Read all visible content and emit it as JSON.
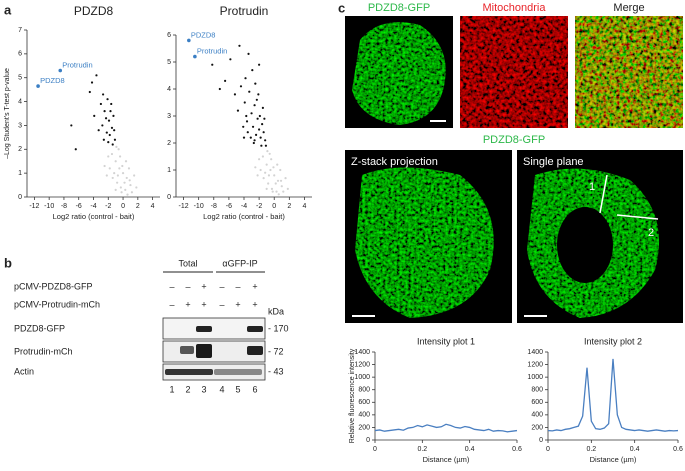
{
  "panel_labels": [
    "a",
    "b",
    "c"
  ],
  "chart_data": [
    {
      "type": "scatter",
      "title": "PDZD8",
      "xlabel": "Log2 ratio (control - bait)",
      "ylabel": "–Log Student's T-test p-value",
      "xlim": [
        -13,
        5
      ],
      "ylim": [
        0,
        7
      ],
      "xticks": [
        -12,
        -10,
        -8,
        -6,
        -4,
        -2,
        0,
        2,
        4
      ],
      "yticks": [
        0,
        1,
        2,
        3,
        4,
        5,
        6,
        7
      ],
      "series": [
        {
          "color": "#d3d3d3",
          "x": [
            -1.5,
            -1.0,
            -0.5,
            0,
            0.5,
            -0.8,
            -0.3,
            0.3,
            1.0,
            -1.2,
            -2.0,
            -2.5,
            0.8,
            1.5,
            -0.6,
            -1.8,
            0.2,
            -0.2,
            0.6,
            1.2,
            -1.0,
            -0.4,
            0.4,
            -1.4,
            -0.9,
            -2.2,
            1.8,
            -0.1,
            0.9,
            -0.7
          ],
          "values": [
            1.8,
            1.5,
            1.2,
            1.0,
            0.8,
            0.6,
            0.4,
            0.3,
            0.5,
            1.0,
            1.7,
            1.3,
            1.2,
            0.9,
            2.0,
            1.2,
            0.6,
            0.2,
            0.1,
            0.2,
            0.3,
            1.7,
            1.5,
            0.8,
            2.1,
            0.9,
            0.4,
            1.3,
            0.7,
            0.9
          ]
        },
        {
          "color": "#111111",
          "x": [
            -4.2,
            -3.6,
            -3.9,
            -4.5,
            -2.1,
            -1.6,
            -2.5,
            -1.9,
            -2.8,
            -1.3,
            -2.2,
            -1.8,
            -1.5,
            -2.6,
            -3.3,
            -1.1,
            -2.0,
            -6.4,
            -7.0,
            -1.7,
            -2.3,
            -1.4,
            -3.0,
            -2.7,
            -1.2
          ],
          "values": [
            4.8,
            5.1,
            3.4,
            4.4,
            4.1,
            3.9,
            3.6,
            3.2,
            3.0,
            3.4,
            2.7,
            2.6,
            2.9,
            2.4,
            2.8,
            2.4,
            2.3,
            2.0,
            3.0,
            3.6,
            3.3,
            2.2,
            3.9,
            4.3,
            2.8
          ]
        },
        {
          "color": "#3b7fc4",
          "x": [
            -11.5,
            -8.5
          ],
          "values": [
            4.65,
            5.3
          ],
          "labels": [
            "PDZD8",
            "Protrudin"
          ]
        }
      ]
    },
    {
      "type": "scatter",
      "title": "Protrudin",
      "xlabel": "Log2 ratio (control - bait)",
      "xlim": [
        -13,
        5
      ],
      "ylim": [
        0,
        6
      ],
      "xticks": [
        -12,
        -10,
        -8,
        -6,
        -4,
        -2,
        0,
        2,
        4
      ],
      "yticks": [
        0,
        1,
        2,
        3,
        4,
        5,
        6
      ],
      "series": [
        {
          "color": "#d3d3d3",
          "x": [
            -1.5,
            -1.0,
            -0.5,
            0,
            0.5,
            -0.8,
            -0.3,
            0.3,
            1.0,
            -1.2,
            -2.0,
            -2.5,
            0.8,
            1.5,
            -0.6,
            -1.8,
            0.2,
            -0.2,
            0.6,
            1.2,
            -1.0,
            -0.4,
            0.4,
            -1.4,
            -0.9,
            -2.2,
            1.8,
            -0.1,
            0.9,
            -0.7
          ],
          "values": [
            1.5,
            1.2,
            1.0,
            0.8,
            0.6,
            0.5,
            0.3,
            0.2,
            0.4,
            0.9,
            1.4,
            1.1,
            1.0,
            0.7,
            1.6,
            1.0,
            0.5,
            0.2,
            0.1,
            0.2,
            0.3,
            1.4,
            1.2,
            0.7,
            1.7,
            0.8,
            0.3,
            1.1,
            0.6,
            0.8
          ]
        },
        {
          "color": "#111111",
          "x": [
            -5.2,
            -4.8,
            -4.4,
            -3.9,
            -3.6,
            -3.3,
            -3.0,
            -2.8,
            -2.6,
            -2.4,
            -2.2,
            -2.0,
            -1.8,
            -1.6,
            -1.4,
            -1.2,
            -3.5,
            -3.1,
            -2.7,
            -2.3,
            -1.9,
            -1.5,
            -4.1,
            -3.8,
            -2.9,
            -2.5,
            -2.1,
            -1.7,
            -1.3,
            -6.5,
            -7.2,
            -5.8,
            -4.6,
            -3.4,
            -8.2,
            -2.0,
            -1.1,
            -3.7,
            -2.6,
            -4.0
          ],
          "values": [
            3.8,
            3.2,
            4.1,
            3.5,
            2.8,
            3.9,
            3.1,
            2.6,
            3.4,
            2.3,
            2.9,
            2.5,
            2.2,
            2.7,
            2.4,
            2.1,
            2.4,
            2.2,
            2.0,
            3.6,
            3.0,
            3.3,
            2.6,
            4.4,
            4.7,
            4.2,
            3.8,
            1.9,
            2.9,
            4.3,
            4.0,
            5.1,
            5.6,
            5.3,
            4.9,
            4.9,
            1.9,
            3.0,
            2.1,
            2.2
          ]
        },
        {
          "color": "#3b7fc4",
          "x": [
            -11.3,
            -10.5
          ],
          "values": [
            5.8,
            5.2
          ],
          "labels": [
            "PDZD8",
            "Protrudin"
          ]
        }
      ]
    },
    {
      "type": "line",
      "title": "Intensity plot 1",
      "xlabel": "Distance (µm)",
      "ylabel": "Relative fluorescence intensity",
      "xlim": [
        0,
        0.6
      ],
      "ylim": [
        0,
        1400
      ],
      "xticks": [
        0,
        0.2,
        0.4,
        0.6
      ],
      "yticks": [
        0,
        200,
        400,
        600,
        800,
        1000,
        1200,
        1400
      ],
      "x": [
        0,
        0.02,
        0.04,
        0.06,
        0.08,
        0.1,
        0.12,
        0.14,
        0.16,
        0.18,
        0.2,
        0.22,
        0.24,
        0.26,
        0.28,
        0.3,
        0.32,
        0.34,
        0.36,
        0.38,
        0.4,
        0.42,
        0.44,
        0.46,
        0.48,
        0.5,
        0.52,
        0.54,
        0.56,
        0.58,
        0.6
      ],
      "series": [
        {
          "color": "#4a7fc1",
          "values": [
            150,
            160,
            140,
            150,
            160,
            170,
            155,
            190,
            200,
            230,
            210,
            240,
            220,
            200,
            210,
            250,
            230,
            200,
            190,
            215,
            200,
            170,
            160,
            150,
            170,
            140,
            150,
            145,
            130,
            140,
            150
          ]
        }
      ]
    },
    {
      "type": "line",
      "title": "Intensity plot 2",
      "xlabel": "Distance (µm)",
      "xlim": [
        0,
        0.6
      ],
      "ylim": [
        0,
        1400
      ],
      "xticks": [
        0,
        0.2,
        0.4,
        0.6
      ],
      "yticks": [
        0,
        200,
        400,
        600,
        800,
        1000,
        1200,
        1400
      ],
      "x": [
        0,
        0.02,
        0.04,
        0.06,
        0.08,
        0.1,
        0.12,
        0.14,
        0.16,
        0.18,
        0.2,
        0.22,
        0.24,
        0.26,
        0.28,
        0.3,
        0.32,
        0.34,
        0.36,
        0.38,
        0.4,
        0.42,
        0.44,
        0.46,
        0.48,
        0.5,
        0.52,
        0.54,
        0.56,
        0.58,
        0.6
      ],
      "series": [
        {
          "color": "#4a7fc1",
          "values": [
            150,
            145,
            160,
            150,
            170,
            180,
            200,
            220,
            380,
            1150,
            300,
            180,
            170,
            190,
            260,
            1290,
            400,
            200,
            170,
            160,
            150,
            160,
            150,
            140,
            150,
            160,
            150,
            140,
            150,
            145,
            150
          ]
        }
      ]
    }
  ],
  "blot": {
    "groups": [
      "Total",
      "αGFP-IP"
    ],
    "kda_label": "kDa",
    "rows": [
      {
        "label": "pCMV-PDZD8-GFP",
        "signs": [
          "–",
          "–",
          "+",
          "–",
          "–",
          "+"
        ]
      },
      {
        "label": "pCMV-Protrudin-mCh",
        "signs": [
          "–",
          "+",
          "+",
          "–",
          "+",
          "+"
        ]
      }
    ],
    "bands": [
      {
        "label": "PDZD8-GFP",
        "marker": "- 170"
      },
      {
        "label": "Protrudin-mCh",
        "marker": "- 72"
      },
      {
        "label": "Actin",
        "marker": "- 43"
      }
    ],
    "lanes": [
      "1",
      "2",
      "3",
      "4",
      "5",
      "6"
    ]
  },
  "microscopy": {
    "top_titles": [
      "PDZD8-GFP",
      "Mitochondria",
      "Merge"
    ],
    "section_title": "PDZD8-GFP",
    "panel_titles": [
      "Z-stack projection",
      "Single plane"
    ],
    "line_labels": [
      "1",
      "2"
    ]
  }
}
